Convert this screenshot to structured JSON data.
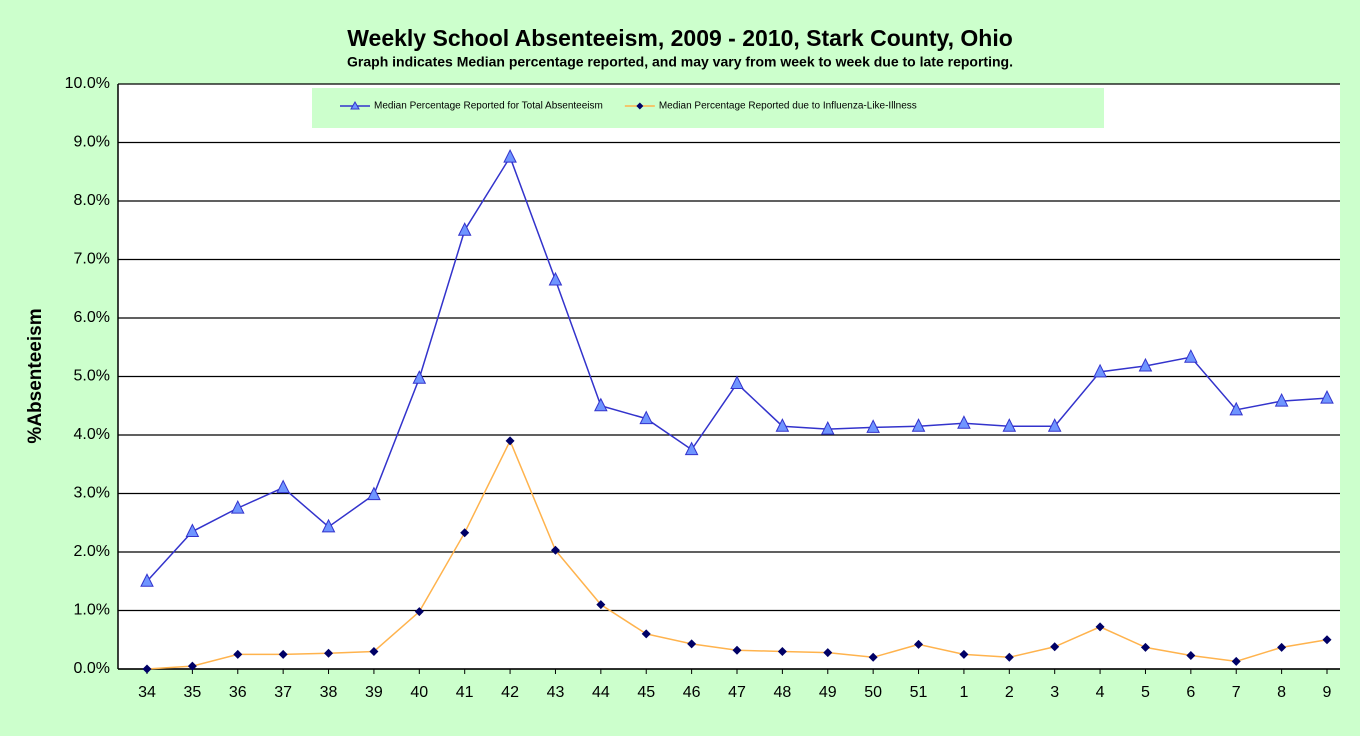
{
  "chart_data": {
    "type": "line",
    "title": "Weekly School Absenteeism, 2009 - 2010, Stark County, Ohio",
    "subtitle": "Graph indicates Median percentage reported, and may vary from week to week due to late reporting.",
    "y_label": "%Absenteeism",
    "categories": [
      "34",
      "35",
      "36",
      "37",
      "38",
      "39",
      "40",
      "41",
      "42",
      "43",
      "44",
      "45",
      "46",
      "47",
      "48",
      "49",
      "50",
      "51",
      "1",
      "2",
      "3",
      "4",
      "5",
      "6",
      "7",
      "8",
      "9"
    ],
    "series": [
      {
        "name": "Median Percentage Reported for Total Absenteeism",
        "color": "#3333cc",
        "marker_color": "#6f95ff",
        "marker": "triangle",
        "values": [
          1.5,
          2.35,
          2.75,
          3.1,
          2.43,
          2.98,
          4.97,
          7.5,
          8.75,
          6.65,
          4.5,
          4.28,
          3.75,
          4.88,
          4.15,
          4.1,
          4.13,
          4.15,
          4.2,
          4.15,
          4.15,
          5.08,
          5.18,
          5.33,
          4.43,
          4.58,
          4.63
        ]
      },
      {
        "name": "Median Percentage Reported due to Influenza-Like-Illness",
        "color": "#ffb34d",
        "marker_color": "#000066",
        "marker": "diamond",
        "values": [
          0.0,
          0.05,
          0.25,
          0.25,
          0.27,
          0.3,
          0.98,
          2.33,
          3.9,
          2.03,
          1.1,
          0.6,
          0.43,
          0.32,
          0.3,
          0.28,
          0.2,
          0.42,
          0.25,
          0.2,
          0.38,
          0.72,
          0.37,
          0.23,
          0.13,
          0.37,
          0.5
        ]
      }
    ],
    "ylim": [
      0,
      10
    ],
    "yticks": [
      {
        "value": 0,
        "label": "0.0%"
      },
      {
        "value": 1,
        "label": "1.0%"
      },
      {
        "value": 2,
        "label": "2.0%"
      },
      {
        "value": 3,
        "label": "3.0%"
      },
      {
        "value": 4,
        "label": "4.0%"
      },
      {
        "value": 5,
        "label": "5.0%"
      },
      {
        "value": 6,
        "label": "6.0%"
      },
      {
        "value": 7,
        "label": "7.0%"
      },
      {
        "value": 8,
        "label": "8.0%"
      },
      {
        "value": 9,
        "label": "9.0%"
      },
      {
        "value": 10,
        "label": "10.0%"
      }
    ],
    "grid": true,
    "legend": "top"
  }
}
